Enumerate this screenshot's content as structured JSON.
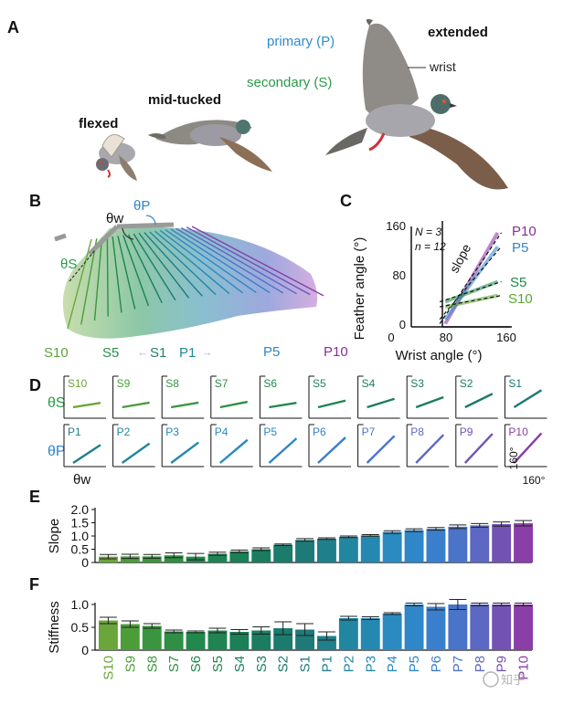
{
  "panels": {
    "A": {
      "letter": "A",
      "labels": {
        "flexed": "flexed",
        "mid_tucked": "mid-tucked",
        "extended": "extended",
        "primary": "primary (P)",
        "secondary": "secondary (S)",
        "wrist": "wrist"
      }
    },
    "B": {
      "letter": "B",
      "theta_w": "θw",
      "theta_p": "θP",
      "theta_s": "θS",
      "feather_labels": [
        "S10",
        "S5",
        "S1",
        "P1",
        "P5",
        "P10"
      ]
    },
    "C": {
      "letter": "C",
      "ylabel": "Feather angle (°)",
      "xlabel": "Wrist angle (°)",
      "yticks": [
        "160",
        "80",
        "0"
      ],
      "xticks": [
        "0",
        "80",
        "160"
      ],
      "N": "N = 3",
      "n": "n = 12",
      "slope_label": "slope",
      "series": [
        {
          "name": "P10",
          "color": "#8a2c9e",
          "x": [
            55,
            140
          ],
          "y": [
            5,
            150
          ]
        },
        {
          "name": "P5",
          "color": "#2f86c8",
          "x": [
            55,
            140
          ],
          "y": [
            12,
            128
          ]
        },
        {
          "name": "S5",
          "color": "#1e8a4a",
          "x": [
            55,
            140
          ],
          "y": [
            40,
            72
          ]
        },
        {
          "name": "S10",
          "color": "#5aa531",
          "x": [
            55,
            140
          ],
          "y": [
            32,
            50
          ]
        }
      ],
      "xlim": [
        0,
        160
      ],
      "ylim": [
        0,
        160
      ]
    },
    "D": {
      "letter": "D",
      "theta_s": "θS",
      "theta_p": "θP",
      "theta_w": "θw",
      "scale_y": "160°",
      "scale_x": "160°",
      "secondaries": [
        "S10",
        "S9",
        "S8",
        "S7",
        "S6",
        "S5",
        "S4",
        "S3",
        "S2",
        "S1"
      ],
      "primaries": [
        "P1",
        "P2",
        "P3",
        "P4",
        "P5",
        "P6",
        "P7",
        "P8",
        "P9",
        "P10"
      ]
    },
    "E": {
      "letter": "E"
    },
    "F": {
      "letter": "F"
    }
  },
  "chart_data": [
    {
      "type": "bar",
      "panel": "E",
      "ylabel": "Slope",
      "ylim": [
        0,
        2.0
      ],
      "yticks": [
        "2.0",
        "1.5",
        "1.0",
        "0.5",
        "0"
      ],
      "categories": [
        "S10",
        "S9",
        "S8",
        "S7",
        "S6",
        "S5",
        "S4",
        "S3",
        "S2",
        "S1",
        "P1",
        "P2",
        "P3",
        "P4",
        "P5",
        "P6",
        "P7",
        "P8",
        "P9",
        "P10"
      ],
      "values": [
        0.22,
        0.23,
        0.23,
        0.27,
        0.22,
        0.33,
        0.42,
        0.5,
        0.67,
        0.85,
        0.9,
        0.97,
        1.02,
        1.15,
        1.22,
        1.27,
        1.35,
        1.4,
        1.45,
        1.48
      ],
      "errors": [
        0.08,
        0.08,
        0.07,
        0.09,
        0.12,
        0.06,
        0.05,
        0.05,
        0.03,
        0.05,
        0.03,
        0.03,
        0.03,
        0.05,
        0.05,
        0.05,
        0.07,
        0.07,
        0.08,
        0.1
      ]
    },
    {
      "type": "bar",
      "panel": "F",
      "ylabel": "Stiffness",
      "ylim": [
        0,
        1.0
      ],
      "yticks": [
        "1.0",
        "0.5",
        "0"
      ],
      "categories": [
        "S10",
        "S9",
        "S8",
        "S7",
        "S6",
        "S5",
        "S4",
        "S3",
        "S2",
        "S1",
        "P1",
        "P2",
        "P3",
        "P4",
        "P5",
        "P6",
        "P7",
        "P8",
        "P9",
        "P10"
      ],
      "values": [
        0.65,
        0.57,
        0.53,
        0.41,
        0.4,
        0.43,
        0.4,
        0.43,
        0.48,
        0.45,
        0.31,
        0.7,
        0.7,
        0.8,
        1.0,
        0.95,
        1.0,
        1.0,
        1.0,
        1.0
      ],
      "errors": [
        0.07,
        0.07,
        0.05,
        0.03,
        0.02,
        0.05,
        0.05,
        0.08,
        0.14,
        0.13,
        0.09,
        0.04,
        0.03,
        0.02,
        0.03,
        0.07,
        0.11,
        0.03,
        0.03,
        0.03
      ]
    }
  ],
  "watermark": "知乎"
}
